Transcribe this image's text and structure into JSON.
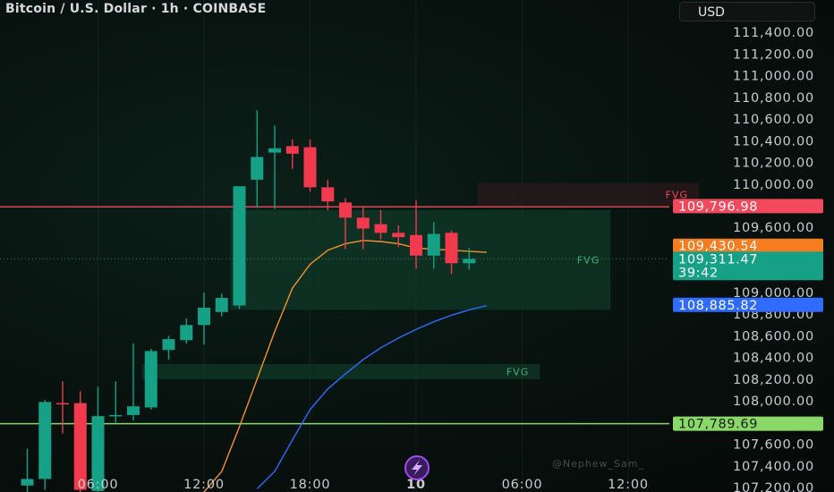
{
  "header": {
    "title": "Bitcoin / U.S. Dollar · 1h · COINBASE",
    "currency": "USD"
  },
  "watermark": "@Nephew_Sam_",
  "colors": {
    "up": "#16a085",
    "down": "#f23a4f",
    "ema_fast": "#f0932b",
    "ema_slow": "#2f6bff",
    "resistance": "#f2495c",
    "support": "#8bd86a",
    "fvg_label": "#3cb371"
  },
  "chart_data": {
    "type": "candlestick",
    "title": "Bitcoin / U.S. Dollar · 1h · COINBASE",
    "ylim": [
      107160,
      111450
    ],
    "y_ticks": [
      107200,
      107400,
      107600,
      107800,
      108000,
      108200,
      108400,
      108600,
      108800,
      109000,
      109200,
      109400,
      109600,
      109800,
      110000,
      110200,
      110400,
      110600,
      110800,
      111000,
      111200,
      111400
    ],
    "y_tick_labels": [
      "107,200.00",
      "107,400.00",
      "107,600.00",
      "107,800.00",
      "108,000.00",
      "108,200.00",
      "108,400.00",
      "108,600.00",
      "108,800.00",
      "109,000.00",
      "109,200.00",
      "109,400.00",
      "109,600.00",
      "109,800.00",
      "110,000.00",
      "110,200.00",
      "110,400.00",
      "110,600.00",
      "110,800.00",
      "111,000.00",
      "111,200.00",
      "111,400.00"
    ],
    "x_labels": [
      {
        "label": "06:00",
        "index": 4
      },
      {
        "label": "12:00",
        "index": 10
      },
      {
        "label": "18:00",
        "index": 16
      },
      {
        "label": "10",
        "index": 22,
        "bold": true
      },
      {
        "label": "06:00",
        "index": 28
      },
      {
        "label": "12:00",
        "index": 34
      }
    ],
    "candles": [
      {
        "o": 107220,
        "h": 107560,
        "l": 107160,
        "c": 107280
      },
      {
        "o": 107280,
        "h": 108010,
        "l": 107180,
        "c": 107990
      },
      {
        "o": 107980,
        "h": 108180,
        "l": 107700,
        "c": 107970
      },
      {
        "o": 107980,
        "h": 108090,
        "l": 107090,
        "c": 107180
      },
      {
        "o": 107170,
        "h": 108130,
        "l": 107160,
        "c": 107860
      },
      {
        "o": 107860,
        "h": 108180,
        "l": 107800,
        "c": 107870
      },
      {
        "o": 107870,
        "h": 108530,
        "l": 107820,
        "c": 107950
      },
      {
        "o": 107940,
        "h": 108480,
        "l": 107920,
        "c": 108460
      },
      {
        "o": 108470,
        "h": 108600,
        "l": 108380,
        "c": 108570
      },
      {
        "o": 108560,
        "h": 108760,
        "l": 108530,
        "c": 108700
      },
      {
        "o": 108700,
        "h": 109000,
        "l": 108520,
        "c": 108860
      },
      {
        "o": 108820,
        "h": 108990,
        "l": 108780,
        "c": 108950
      },
      {
        "o": 108880,
        "h": 109980,
        "l": 108850,
        "c": 109980
      },
      {
        "o": 110040,
        "h": 110680,
        "l": 109780,
        "c": 110250
      },
      {
        "o": 110290,
        "h": 110540,
        "l": 109770,
        "c": 110330
      },
      {
        "o": 110350,
        "h": 110410,
        "l": 110140,
        "c": 110280
      },
      {
        "o": 110340,
        "h": 110410,
        "l": 109930,
        "c": 109970
      },
      {
        "o": 109970,
        "h": 110040,
        "l": 109760,
        "c": 109840
      },
      {
        "o": 109830,
        "h": 109870,
        "l": 109400,
        "c": 109690
      },
      {
        "o": 109690,
        "h": 109790,
        "l": 109400,
        "c": 109590
      },
      {
        "o": 109630,
        "h": 109760,
        "l": 109490,
        "c": 109550
      },
      {
        "o": 109550,
        "h": 109620,
        "l": 109420,
        "c": 109510
      },
      {
        "o": 109530,
        "h": 109850,
        "l": 109220,
        "c": 109340
      },
      {
        "o": 109340,
        "h": 109650,
        "l": 109220,
        "c": 109540
      },
      {
        "o": 109550,
        "h": 109570,
        "l": 109170,
        "c": 109270
      },
      {
        "o": 109270,
        "h": 109410,
        "l": 109210,
        "c": 109310
      }
    ],
    "series": [
      {
        "name": "",
        "color": "#f0932b",
        "points": [
          [
            10,
            107160
          ],
          [
            11,
            107350
          ],
          [
            12,
            107760
          ],
          [
            13,
            108200
          ],
          [
            14,
            108640
          ],
          [
            15,
            109040
          ],
          [
            16,
            109260
          ],
          [
            17,
            109390
          ],
          [
            18,
            109450
          ],
          [
            19,
            109480
          ],
          [
            20,
            109470
          ],
          [
            21,
            109450
          ],
          [
            22,
            109410
          ],
          [
            23,
            109400
          ],
          [
            24,
            109390
          ],
          [
            25,
            109380
          ],
          [
            26,
            109370
          ]
        ]
      },
      {
        "name": "",
        "color": "#2f6bff",
        "points": [
          [
            13,
            107190
          ],
          [
            14,
            107350
          ],
          [
            15,
            107640
          ],
          [
            16,
            107920
          ],
          [
            17,
            108110
          ],
          [
            18,
            108250
          ],
          [
            19,
            108380
          ],
          [
            20,
            108490
          ],
          [
            21,
            108580
          ],
          [
            22,
            108660
          ],
          [
            23,
            108730
          ],
          [
            24,
            108790
          ],
          [
            25,
            108840
          ],
          [
            26,
            108880
          ]
        ]
      }
    ],
    "lines": [
      {
        "price": 109790,
        "color": "#f2495c"
      },
      {
        "price": 107790,
        "color": "#8bd86a"
      }
    ],
    "fvg": [
      {
        "label": "FVG",
        "from": 26,
        "to": 38,
        "top": 110010,
        "bottom": 109800,
        "color": "#f2495c"
      },
      {
        "label": "FVG",
        "from": 12,
        "to": 33,
        "top": 109760,
        "bottom": 108840,
        "color": "#3cb371"
      },
      {
        "label": "FVG",
        "from": 7,
        "to": 29,
        "top": 108340,
        "bottom": 108200,
        "color": "#3cb371"
      }
    ],
    "price_tags": [
      {
        "label": "109,796.98",
        "price": 109797,
        "bg": "#f2495c",
        "fg": "#ffffff"
      },
      {
        "label": "109,430.54",
        "price": 109431,
        "bg": "#f57c1f",
        "fg": "#ffffff"
      },
      {
        "label": "109,311.47",
        "sub": "39:42",
        "price": 109311,
        "bg": "#16a085",
        "fg": "#ffffff"
      },
      {
        "label": "108,885.82",
        "price": 108886,
        "bg": "#2f6bff",
        "fg": "#ffffff"
      },
      {
        "label": "107,789.69",
        "price": 107790,
        "bg": "#8bd86a",
        "fg": "#10200d"
      }
    ]
  }
}
